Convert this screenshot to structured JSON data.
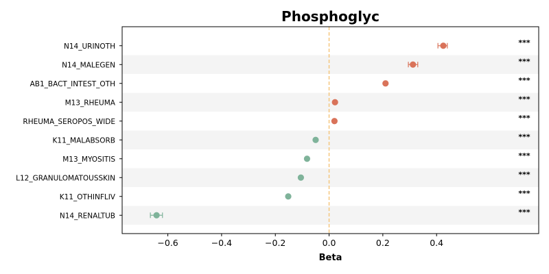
{
  "chart_data": {
    "type": "scatter",
    "title": "Phosphoglyc",
    "xlabel": "Beta",
    "ylabel": "",
    "xlim": [
      -0.77,
      0.78
    ],
    "xticks": [
      -0.6,
      -0.4,
      -0.2,
      0.0,
      0.2,
      0.4
    ],
    "xtick_labels": [
      "−0.6",
      "−0.4",
      "−0.2",
      "0.0",
      "0.2",
      "0.4"
    ],
    "reference_line": 0.0,
    "colors": {
      "positive": "#d9735a",
      "negative": "#7fb39a",
      "reference": "#f5c77e",
      "stripe": "#f4f4f4"
    },
    "points": [
      {
        "label": "N14_URINOTH",
        "beta": 0.425,
        "ci_low": 0.405,
        "ci_high": 0.44,
        "sig": "***"
      },
      {
        "label": "N14_MALEGEN",
        "beta": 0.312,
        "ci_low": 0.295,
        "ci_high": 0.33,
        "sig": "***"
      },
      {
        "label": "AB1_BACT_INTEST_OTH",
        "beta": 0.21,
        "ci_low": 0.205,
        "ci_high": 0.215,
        "sig": "***"
      },
      {
        "label": "M13_RHEUMA",
        "beta": 0.022,
        "ci_low": 0.018,
        "ci_high": 0.026,
        "sig": "***"
      },
      {
        "label": "RHEUMA_SEROPOS_WIDE",
        "beta": 0.02,
        "ci_low": 0.016,
        "ci_high": 0.024,
        "sig": "***"
      },
      {
        "label": "K11_MALABSORB",
        "beta": -0.05,
        "ci_low": -0.054,
        "ci_high": -0.046,
        "sig": "***"
      },
      {
        "label": "M13_MYOSITIS",
        "beta": -0.082,
        "ci_low": -0.086,
        "ci_high": -0.078,
        "sig": "***"
      },
      {
        "label": "L12_GRANULOMATOUSSKIN",
        "beta": -0.105,
        "ci_low": -0.109,
        "ci_high": -0.101,
        "sig": "***"
      },
      {
        "label": "K11_OTHINFLIV",
        "beta": -0.152,
        "ci_low": -0.156,
        "ci_high": -0.148,
        "sig": "***"
      },
      {
        "label": "N14_RENALTUB",
        "beta": -0.642,
        "ci_low": -0.665,
        "ci_high": -0.62,
        "sig": "***"
      }
    ]
  }
}
